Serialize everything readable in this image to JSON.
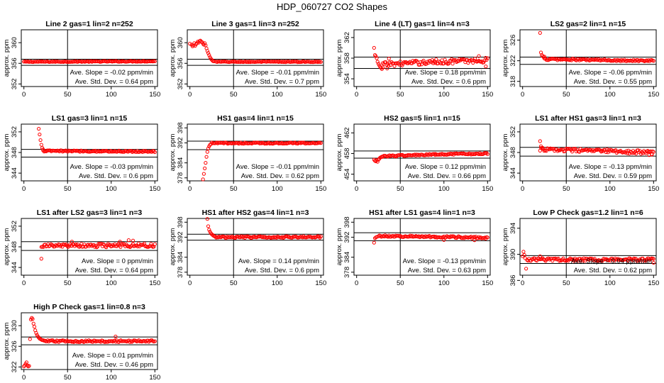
{
  "figure": {
    "title": "HDP_060727  CO2 Shapes"
  },
  "chart_data": [
    {
      "type": "scatter",
      "title": "Line 2 gas=1 lin=2 n=252",
      "ylabel": "approx. ppm",
      "xlim": [
        -3,
        153
      ],
      "ylim": [
        351.5,
        362.5
      ],
      "xticks": [
        0,
        50,
        100,
        150
      ],
      "yticks": [
        352,
        356,
        360
      ],
      "ytick_labels": [
        "352",
        "356",
        "360"
      ],
      "hlines": [
        356.8,
        355.6
      ],
      "vline": 50,
      "annotation": [
        "Ave. Slope = -0.02 ppm/min",
        "Ave. Std. Dev. = 0.64 ppm"
      ],
      "segments": [
        {
          "x": [
            0,
            150
          ],
          "y": [
            356.3,
            356.4
          ],
          "n": 130,
          "jitter": 0.08
        }
      ],
      "points": []
    },
    {
      "type": "scatter",
      "title": "Line 3 gas=1 lin=3 n=252",
      "ylabel": "approx. ppm",
      "xlim": [
        -3,
        153
      ],
      "ylim": [
        351.5,
        362.5
      ],
      "xticks": [
        0,
        50,
        100,
        150
      ],
      "yticks": [
        352,
        356,
        360
      ],
      "ytick_labels": [
        "352",
        "356",
        "360"
      ],
      "hlines": [
        356.8,
        355.6
      ],
      "vline": 50,
      "annotation": [
        "Ave. Slope = -0.01 ppm/min",
        "Ave. Std. Dev. = 0.7 ppm"
      ],
      "segments": [
        {
          "x": [
            30,
            150
          ],
          "y": [
            356.3,
            356.3
          ],
          "n": 105,
          "jitter": 0.08
        }
      ],
      "points": [
        [
          0,
          359.8
        ],
        [
          2,
          359.6
        ],
        [
          3,
          359.3
        ],
        [
          4,
          359.5
        ],
        [
          5,
          359.9
        ],
        [
          6,
          359.4
        ],
        [
          7,
          359.7
        ],
        [
          8,
          359.9
        ],
        [
          9,
          360.2
        ],
        [
          10,
          360.0
        ],
        [
          11,
          360.3
        ],
        [
          12,
          360.4
        ],
        [
          13,
          360.2
        ],
        [
          14,
          360.1
        ],
        [
          15,
          359.8
        ],
        [
          16,
          359.6
        ],
        [
          17,
          359.9
        ],
        [
          18,
          359.5
        ],
        [
          19,
          358.9
        ],
        [
          20,
          358.4
        ],
        [
          21,
          358.0
        ],
        [
          22,
          357.6
        ],
        [
          23,
          357.2
        ],
        [
          24,
          356.9
        ],
        [
          25,
          356.7
        ],
        [
          26,
          356.5
        ],
        [
          27,
          356.4
        ],
        [
          28,
          356.4
        ]
      ]
    },
    {
      "type": "scatter",
      "title": "Line 4 (LT) gas=1 lin=4 n=3",
      "ylabel": "approx. ppm",
      "xlim": [
        -3,
        153
      ],
      "ylim": [
        352.5,
        363.5
      ],
      "xticks": [
        0,
        50,
        100,
        150
      ],
      "yticks": [
        354,
        358,
        362
      ],
      "ytick_labels": [
        "354",
        "358",
        "362"
      ],
      "hlines": [
        358.2,
        356.0
      ],
      "vline": 50,
      "annotation": [
        "Ave. Slope = 0.18 ppm/min",
        "Ave. Std. Dev. = 0.6 ppm"
      ],
      "segments": [
        {
          "x": [
            30,
            90
          ],
          "y": [
            356.8,
            357.3
          ],
          "n": 55,
          "jitter": 0.45
        },
        {
          "x": [
            90,
            150
          ],
          "y": [
            357.3,
            357.6
          ],
          "n": 55,
          "jitter": 0.5
        }
      ],
      "points": [
        [
          20,
          360.0
        ],
        [
          21,
          358.6
        ],
        [
          22,
          358.4
        ],
        [
          23,
          358.0
        ],
        [
          24,
          357.3
        ],
        [
          25,
          356.9
        ],
        [
          26,
          356.6
        ],
        [
          27,
          356.3
        ],
        [
          28,
          356.1
        ],
        [
          29,
          355.9
        ],
        [
          30,
          356.2
        ],
        [
          35,
          356.0
        ],
        [
          37,
          357.9
        ],
        [
          140,
          358.4
        ],
        [
          148,
          356.4
        ]
      ]
    },
    {
      "type": "scatter",
      "title": "LS2 gas=2 lin=1 n=15",
      "ylabel": "approx. ppm",
      "xlim": [
        -3,
        153
      ],
      "ylim": [
        317,
        328
      ],
      "xticks": [
        0,
        50,
        100,
        150
      ],
      "yticks": [
        318,
        322,
        326
      ],
      "ytick_labels": [
        "318",
        "322",
        "326"
      ],
      "hlines": [
        322.7,
        321.3
      ],
      "vline": 50,
      "annotation": [
        "Ave. Slope = -0.06 ppm/min",
        "Ave. Std. Dev. = 0.55 ppm"
      ],
      "segments": [
        {
          "x": [
            25,
            150
          ],
          "y": [
            322.3,
            322.0
          ],
          "n": 110,
          "jitter": 0.18
        }
      ],
      "points": [
        [
          20,
          327.4
        ],
        [
          21,
          323.6
        ],
        [
          22,
          323.1
        ],
        [
          23,
          322.9
        ],
        [
          24,
          322.7
        ],
        [
          25,
          322.8
        ]
      ]
    },
    {
      "type": "scatter",
      "title": "LS1 gas=3 lin=1 n=15",
      "ylabel": "approx. ppm",
      "xlim": [
        -3,
        153
      ],
      "ylim": [
        342.5,
        353.5
      ],
      "xticks": [
        0,
        50,
        100,
        150
      ],
      "yticks": [
        344,
        348,
        352
      ],
      "ytick_labels": [
        "344",
        "348",
        "352"
      ],
      "hlines": [
        348.6,
        347.1
      ],
      "vline": 50,
      "annotation": [
        "Ave. Slope = -0.03 ppm/min",
        "Ave. Std. Dev. = 0.6 ppm"
      ],
      "segments": [
        {
          "x": [
            22,
            150
          ],
          "y": [
            348.3,
            348.2
          ],
          "n": 110,
          "jitter": 0.14
        }
      ],
      "points": [
        [
          17,
          352.6
        ],
        [
          18,
          351.5
        ],
        [
          19,
          350.4
        ],
        [
          20,
          349.5
        ],
        [
          21,
          348.9
        ],
        [
          22,
          348.6
        ]
      ]
    },
    {
      "type": "scatter",
      "title": "HS1 gas=4 lin=1 n=15",
      "ylabel": "approx. ppm",
      "xlim": [
        -3,
        153
      ],
      "ylim": [
        376.8,
        399.5
      ],
      "xticks": [
        0,
        50,
        100,
        150
      ],
      "yticks": [
        378,
        384,
        392,
        398
      ],
      "ytick_labels": [
        "378",
        "384",
        "392",
        "398"
      ],
      "hlines": [
        392.7,
        389.3
      ],
      "vline": 50,
      "annotation": [
        "Ave. Slope = -0.01 ppm/min",
        "Ave. Std. Dev. = 0.62 ppm"
      ],
      "segments": [
        {
          "x": [
            25,
            150
          ],
          "y": [
            391.9,
            391.9
          ],
          "n": 110,
          "jitter": 0.25
        }
      ],
      "points": [
        [
          15,
          377.4
        ],
        [
          16,
          379.6
        ],
        [
          17,
          381.8
        ],
        [
          18,
          384.0
        ],
        [
          19,
          386.4
        ],
        [
          20,
          388.4
        ],
        [
          21,
          389.8
        ],
        [
          22,
          390.6
        ],
        [
          23,
          391.2
        ],
        [
          24,
          391.5
        ]
      ]
    },
    {
      "type": "scatter",
      "title": "HS2 gas=5 lin=1 n=15",
      "ylabel": "approx. ppm",
      "xlim": [
        -3,
        153
      ],
      "ylim": [
        452.7,
        463.7
      ],
      "xticks": [
        0,
        50,
        100,
        150
      ],
      "yticks": [
        454,
        458,
        462
      ],
      "ytick_labels": [
        "454",
        "458",
        "462"
      ],
      "hlines": [
        458.5,
        457.1
      ],
      "vline": 50,
      "annotation": [
        "Ave. Slope = 0.12 ppm/min",
        "Ave. Std. Dev. = 0.66 ppm"
      ],
      "segments": [
        {
          "x": [
            30,
            90
          ],
          "y": [
            457.5,
            457.8
          ],
          "n": 55,
          "jitter": 0.15
        },
        {
          "x": [
            90,
            150
          ],
          "y": [
            457.8,
            458.0
          ],
          "n": 55,
          "jitter": 0.15
        }
      ],
      "points": [
        [
          20,
          456.8
        ],
        [
          21,
          456.6
        ],
        [
          22,
          456.5
        ],
        [
          23,
          456.7
        ],
        [
          24,
          456.4
        ],
        [
          25,
          456.8
        ],
        [
          26,
          457.0
        ],
        [
          27,
          457.2
        ],
        [
          28,
          457.3
        ],
        [
          29,
          457.4
        ]
      ]
    },
    {
      "type": "scatter",
      "title": "LS1 after HS1 gas=3 lin=1 n=3",
      "ylabel": "approx. ppm",
      "xlim": [
        -3,
        153
      ],
      "ylim": [
        342.5,
        353.5
      ],
      "xticks": [
        0,
        50,
        100,
        150
      ],
      "yticks": [
        344,
        348,
        352
      ],
      "ytick_labels": [
        "344",
        "348",
        "352"
      ],
      "hlines": [
        349.0,
        347.3
      ],
      "vline": 50,
      "annotation": [
        "Ave. Slope = -0.13 ppm/min",
        "Ave. Std. Dev. = 0.59 ppm"
      ],
      "segments": [
        {
          "x": [
            20,
            90
          ],
          "y": [
            348.6,
            348.3
          ],
          "n": 60,
          "jitter": 0.3
        },
        {
          "x": [
            90,
            150
          ],
          "y": [
            348.3,
            348.0
          ],
          "n": 55,
          "jitter": 0.35
        }
      ],
      "points": [
        [
          20,
          350.2
        ],
        [
          21,
          349.2
        ],
        [
          23,
          348.9
        ],
        [
          145,
          347.5
        ],
        [
          148,
          347.6
        ]
      ]
    },
    {
      "type": "scatter",
      "title": "LS1 after LS2 gas=3 lin=1 n=3",
      "ylabel": "approx. ppm",
      "xlim": [
        -3,
        153
      ],
      "ylim": [
        342.5,
        353.5
      ],
      "xticks": [
        0,
        50,
        100,
        150
      ],
      "yticks": [
        344,
        348,
        352
      ],
      "ytick_labels": [
        "344",
        "348",
        "352"
      ],
      "hlines": [
        349.0,
        347.3
      ],
      "vline": 50,
      "annotation": [
        "Ave. Slope = 0 ppm/min",
        "Ave. Std. Dev. = 0.64 ppm"
      ],
      "segments": [
        {
          "x": [
            20,
            150
          ],
          "y": [
            348.2,
            348.3
          ],
          "n": 120,
          "jitter": 0.35
        }
      ],
      "points": [
        [
          20,
          345.7
        ],
        [
          125,
          349.2
        ],
        [
          110,
          349.0
        ],
        [
          55,
          349.0
        ],
        [
          120,
          349.3
        ]
      ]
    },
    {
      "type": "scatter",
      "title": "HS1 after HS2 gas=4 lin=1 n=3",
      "ylabel": "approx. ppm",
      "xlim": [
        -3,
        153
      ],
      "ylim": [
        376.8,
        399.5
      ],
      "xticks": [
        0,
        50,
        100,
        150
      ],
      "yticks": [
        378,
        384,
        392,
        398
      ],
      "ytick_labels": [
        "378",
        "384",
        "392",
        "398"
      ],
      "hlines": [
        393.2,
        390.8
      ],
      "vline": 50,
      "annotation": [
        "Ave. Slope = 0.14 ppm/min",
        "Ave. Std. Dev. = 0.6 ppm"
      ],
      "segments": [
        {
          "x": [
            30,
            150
          ],
          "y": [
            392.0,
            392.1
          ],
          "n": 110,
          "jitter": 0.35
        }
      ],
      "points": [
        [
          20,
          399.3
        ],
        [
          21,
          396.4
        ],
        [
          22,
          395.0
        ],
        [
          23,
          394.2
        ],
        [
          24,
          393.6
        ],
        [
          25,
          393.2
        ],
        [
          26,
          392.9
        ],
        [
          27,
          392.6
        ],
        [
          28,
          392.4
        ],
        [
          29,
          392.3
        ]
      ]
    },
    {
      "type": "scatter",
      "title": "HS1 after LS1 gas=4 lin=1 n=3",
      "ylabel": "approx. ppm",
      "xlim": [
        -3,
        153
      ],
      "ylim": [
        376.8,
        399.5
      ],
      "xticks": [
        0,
        50,
        100,
        150
      ],
      "yticks": [
        378,
        384,
        392,
        398
      ],
      "ytick_labels": [
        "378",
        "384",
        "392",
        "398"
      ],
      "hlines": [
        393.8,
        390.6
      ],
      "vline": 50,
      "annotation": [
        "Ave. Slope = -0.13 ppm/min",
        "Ave. Std. Dev. = 0.63 ppm"
      ],
      "segments": [
        {
          "x": [
            25,
            90
          ],
          "y": [
            392.5,
            392.2
          ],
          "n": 60,
          "jitter": 0.35
        },
        {
          "x": [
            90,
            150
          ],
          "y": [
            392.2,
            391.8
          ],
          "n": 55,
          "jitter": 0.4
        }
      ],
      "points": [
        [
          20,
          389.8
        ],
        [
          21,
          391.6
        ],
        [
          22,
          391.9
        ],
        [
          23,
          392.1
        ],
        [
          100,
          390.9
        ],
        [
          135,
          390.8
        ]
      ]
    },
    {
      "type": "scatter",
      "title": "Low P Check gas=1.2 lin=1 n=6",
      "ylabel": "approx. ppm",
      "xlim": [
        -3,
        153
      ],
      "ylim": [
        386.8,
        395.5
      ],
      "xticks": [
        0,
        50,
        100,
        150
      ],
      "yticks": [
        386,
        390,
        394
      ],
      "ytick_labels": [
        "386",
        "390",
        "394"
      ],
      "hlines": [
        389.8,
        388.6
      ],
      "vline": 50,
      "annotation": [
        "Ave. Slope = 0.04 ppm/min",
        "Ave. Std. Dev. = 0.62 ppm"
      ],
      "segments": [
        {
          "x": [
            5,
            150
          ],
          "y": [
            389.2,
            389.2
          ],
          "n": 130,
          "jitter": 0.22
        }
      ],
      "points": [
        [
          0,
          389.7
        ],
        [
          1,
          390.4
        ],
        [
          2,
          389.9
        ],
        [
          3,
          389.4
        ],
        [
          4,
          387.8
        ],
        [
          20,
          389.7
        ],
        [
          150,
          388.7
        ]
      ]
    },
    {
      "type": "scatter",
      "title": "High P Check gas=1 lin=0.8 n=3",
      "ylabel": "approx. ppm",
      "xlim": [
        -3,
        153
      ],
      "ylim": [
        321.5,
        332.5
      ],
      "xticks": [
        0,
        50,
        100,
        150
      ],
      "yticks": [
        322,
        326,
        330
      ],
      "ytick_labels": [
        "322",
        "326",
        "330"
      ],
      "hlines": [
        327.8,
        326.3
      ],
      "vline": 50,
      "annotation": [
        "Ave. Slope = 0.01 ppm/min",
        "Ave. Std. Dev. = 0.46 ppm"
      ],
      "segments": [
        {
          "x": [
            25,
            150
          ],
          "y": [
            327.0,
            327.0
          ],
          "n": 110,
          "jitter": 0.18
        }
      ],
      "points": [
        [
          0,
          322.1
        ],
        [
          1,
          322.3
        ],
        [
          2,
          322.6
        ],
        [
          3,
          322.9
        ],
        [
          4,
          322.3
        ],
        [
          5,
          322.1
        ],
        [
          6,
          322.2
        ],
        [
          7,
          327.4
        ],
        [
          8,
          331.2
        ],
        [
          9,
          331.5
        ],
        [
          10,
          331.3
        ],
        [
          11,
          330.4
        ],
        [
          12,
          329.8
        ],
        [
          13,
          329.1
        ],
        [
          14,
          328.6
        ],
        [
          15,
          328.2
        ],
        [
          16,
          327.9
        ],
        [
          17,
          327.7
        ],
        [
          18,
          327.5
        ],
        [
          19,
          327.4
        ],
        [
          20,
          327.3
        ],
        [
          21,
          327.2
        ],
        [
          22,
          327.2
        ],
        [
          23,
          327.1
        ],
        [
          24,
          327.1
        ],
        [
          105,
          327.9
        ]
      ]
    }
  ]
}
